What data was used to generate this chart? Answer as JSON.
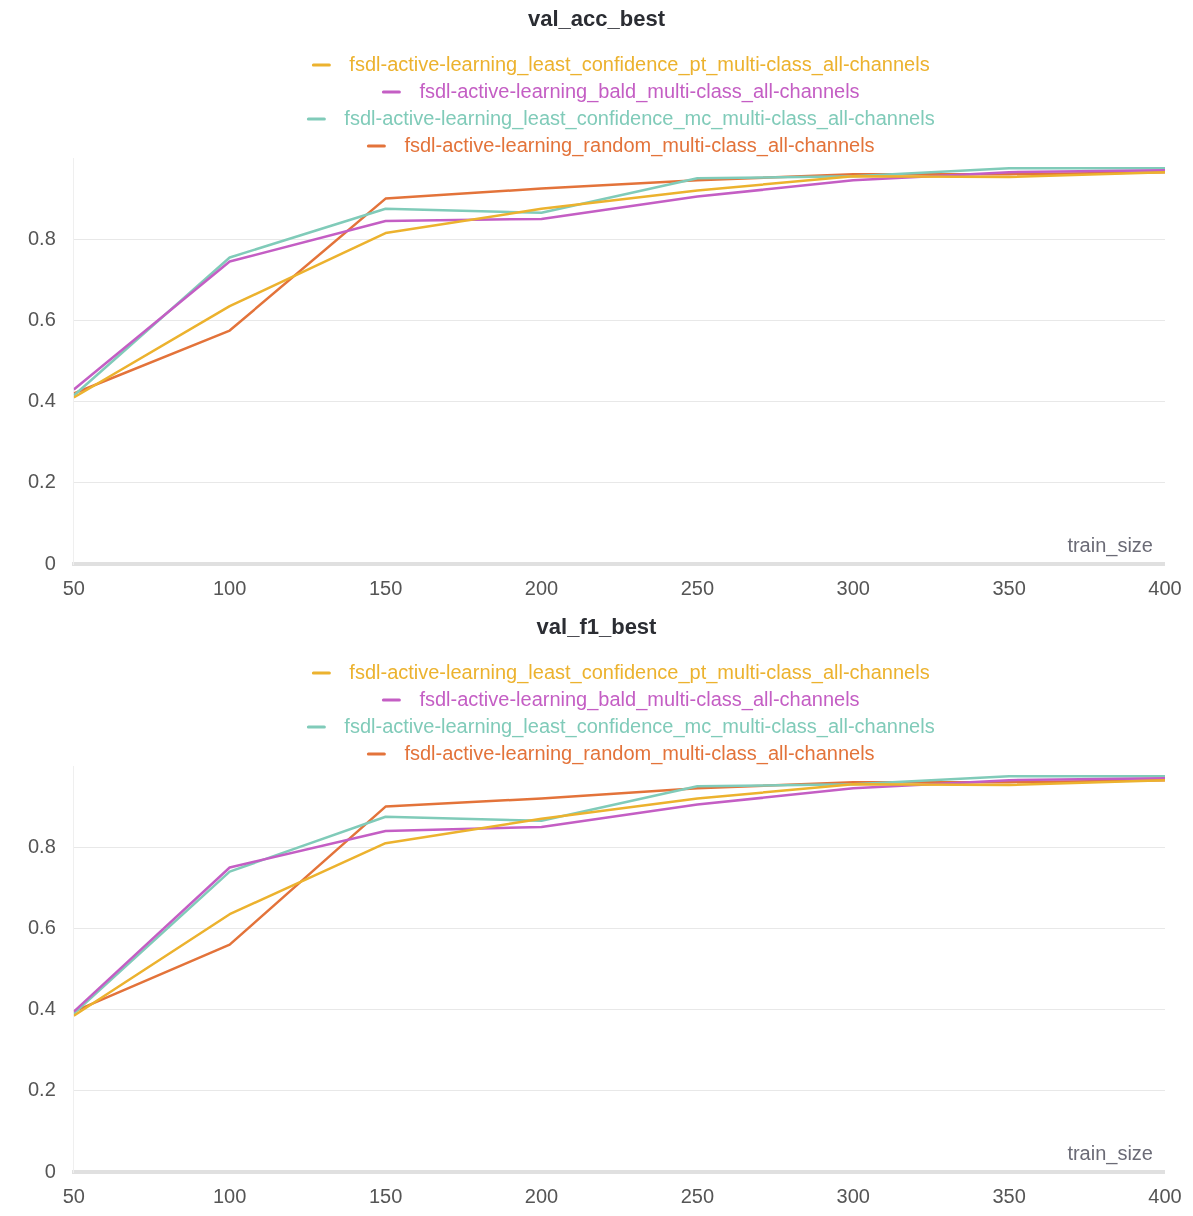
{
  "chart_data": [
    {
      "type": "line",
      "title": "val_acc_best",
      "xlabel": "train_size",
      "x": [
        50,
        100,
        150,
        200,
        250,
        300,
        350,
        400
      ],
      "xlim": [
        50,
        400
      ],
      "xticks": [
        50,
        100,
        150,
        200,
        250,
        300,
        350,
        400
      ],
      "ylim": [
        0,
        1
      ],
      "yticks": [
        0,
        0.2,
        0.4,
        0.6,
        0.8
      ],
      "grid": "y",
      "legend": "top",
      "marker": "none",
      "line_style": "solid",
      "series": [
        {
          "name": "fsdl-active-learning_least_confidence_pt_multi-class_all-channels",
          "color": "#ecb22e",
          "values": [
            0.41,
            0.635,
            0.815,
            0.875,
            0.92,
            0.955,
            0.953,
            0.965
          ]
        },
        {
          "name": "fsdl-active-learning_bald_multi-class_all-channels",
          "color": "#c45ec4",
          "values": [
            0.43,
            0.745,
            0.845,
            0.85,
            0.905,
            0.945,
            0.965,
            0.97
          ]
        },
        {
          "name": "fsdl-active-learning_least_confidence_mc_multi-class_all-channels",
          "color": "#80cbb9",
          "values": [
            0.415,
            0.755,
            0.875,
            0.865,
            0.95,
            0.955,
            0.975,
            0.975
          ]
        },
        {
          "name": "fsdl-active-learning_random_multi-class_all-channels",
          "color": "#e3733a",
          "values": [
            0.42,
            0.575,
            0.9,
            0.925,
            0.945,
            0.96,
            0.96,
            0.965
          ]
        }
      ]
    },
    {
      "type": "line",
      "title": "val_f1_best",
      "xlabel": "train_size",
      "x": [
        50,
        100,
        150,
        200,
        250,
        300,
        350,
        400
      ],
      "xlim": [
        50,
        400
      ],
      "xticks": [
        50,
        100,
        150,
        200,
        250,
        300,
        350,
        400
      ],
      "ylim": [
        0,
        1
      ],
      "yticks": [
        0,
        0.2,
        0.4,
        0.6,
        0.8
      ],
      "grid": "y",
      "legend": "top",
      "marker": "none",
      "line_style": "solid",
      "series": [
        {
          "name": "fsdl-active-learning_least_confidence_pt_multi-class_all-channels",
          "color": "#ecb22e",
          "values": [
            0.385,
            0.635,
            0.81,
            0.87,
            0.92,
            0.955,
            0.953,
            0.965
          ]
        },
        {
          "name": "fsdl-active-learning_bald_multi-class_all-channels",
          "color": "#c45ec4",
          "values": [
            0.395,
            0.75,
            0.84,
            0.85,
            0.905,
            0.945,
            0.965,
            0.97
          ]
        },
        {
          "name": "fsdl-active-learning_least_confidence_mc_multi-class_all-channels",
          "color": "#80cbb9",
          "values": [
            0.39,
            0.74,
            0.875,
            0.865,
            0.95,
            0.955,
            0.975,
            0.975
          ]
        },
        {
          "name": "fsdl-active-learning_random_multi-class_all-channels",
          "color": "#e3733a",
          "values": [
            0.395,
            0.56,
            0.9,
            0.92,
            0.945,
            0.96,
            0.96,
            0.965
          ]
        }
      ]
    }
  ]
}
